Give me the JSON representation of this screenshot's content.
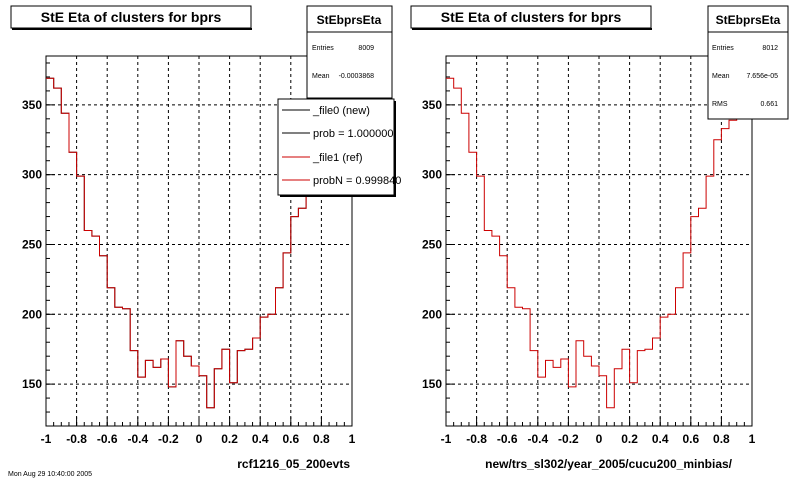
{
  "footer": "Mon Aug 29 10:40:00 2005",
  "chart_data": [
    {
      "type": "line",
      "title": "StE Eta of clusters for bprs",
      "xlabel": "rcf1216_05_200evts",
      "ylabel": "",
      "xlim": [
        -1,
        1
      ],
      "ylim": [
        120,
        385
      ],
      "x_ticks": [
        "-1",
        "-0.8",
        "-0.6",
        "-0.4",
        "-0.2",
        "0",
        "0.2",
        "0.4",
        "0.6",
        "0.8",
        "1"
      ],
      "y_ticks": [
        "150",
        "200",
        "250",
        "300",
        "350"
      ],
      "grid": true,
      "x_bin_edges": [
        -1,
        -0.95,
        -0.9,
        -0.85,
        -0.8,
        -0.75,
        -0.7,
        -0.65,
        -0.6,
        -0.55,
        -0.5,
        -0.45,
        -0.4,
        -0.35,
        -0.3,
        -0.25,
        -0.2,
        -0.15,
        -0.1,
        -0.05,
        0,
        0.05,
        0.1,
        0.15,
        0.2,
        0.25,
        0.3,
        0.35,
        0.4,
        0.45,
        0.5,
        0.55,
        0.6,
        0.65,
        0.7,
        0.75,
        0.8,
        0.85,
        0.9,
        0.95,
        1
      ],
      "series": [
        {
          "name": "_file0 (new)",
          "color": "#000000",
          "values": [
            369,
            362,
            344,
            316,
            299,
            260,
            256,
            242,
            219,
            205,
            204,
            174,
            155,
            167,
            162,
            168,
            148,
            181,
            170,
            163,
            156,
            133,
            161,
            175,
            151,
            174,
            175,
            183,
            198,
            200,
            219,
            244,
            270,
            276,
            299,
            325,
            333,
            339,
            348,
            372
          ]
        },
        {
          "name": "_file1 (ref)",
          "color": "#cc0000",
          "values": [
            369,
            362,
            344,
            316,
            299,
            260,
            256,
            242,
            219,
            205,
            204,
            174,
            155,
            167,
            162,
            168,
            148,
            181,
            170,
            163,
            156,
            133,
            161,
            175,
            151,
            174,
            175,
            183,
            198,
            200,
            219,
            244,
            270,
            276,
            299,
            325,
            333,
            339,
            348,
            372
          ]
        }
      ],
      "stats_box": {
        "name": "StEbprsEta",
        "rows": [
          {
            "label": "Entries",
            "value": "8009"
          },
          {
            "label": "Mean",
            "value": "-0.0003868"
          }
        ]
      },
      "legend": {
        "placement": "top-right",
        "entries": [
          {
            "label": "_file0 (new)",
            "color": "#000000"
          },
          {
            "label": "prob = 1.000000",
            "color": "#000000"
          },
          {
            "label": "_file1 (ref)",
            "color": "#cc0000"
          },
          {
            "label": "probN = 0.999840",
            "color": "#cc0000"
          }
        ]
      }
    },
    {
      "type": "line",
      "title": "StE Eta of clusters for bprs",
      "xlabel": "new/trs_sl302/year_2005/cucu200_minbias/",
      "ylabel": "",
      "xlim": [
        -1,
        1
      ],
      "ylim": [
        120,
        385
      ],
      "x_ticks": [
        "-1",
        "-0.8",
        "-0.6",
        "-0.4",
        "-0.2",
        "0",
        "0.2",
        "0.4",
        "0.6",
        "0.8",
        "1"
      ],
      "y_ticks": [
        "150",
        "200",
        "250",
        "300",
        "350"
      ],
      "grid": true,
      "x_bin_edges": [
        -1,
        -0.95,
        -0.9,
        -0.85,
        -0.8,
        -0.75,
        -0.7,
        -0.65,
        -0.6,
        -0.55,
        -0.5,
        -0.45,
        -0.4,
        -0.35,
        -0.3,
        -0.25,
        -0.2,
        -0.15,
        -0.1,
        -0.05,
        0,
        0.05,
        0.1,
        0.15,
        0.2,
        0.25,
        0.3,
        0.35,
        0.4,
        0.45,
        0.5,
        0.55,
        0.6,
        0.65,
        0.7,
        0.75,
        0.8,
        0.85,
        0.9,
        0.95,
        1
      ],
      "series": [
        {
          "name": "",
          "color": "#cc0000",
          "values": [
            369,
            362,
            344,
            316,
            299,
            260,
            256,
            242,
            219,
            205,
            204,
            174,
            155,
            167,
            162,
            168,
            148,
            181,
            170,
            163,
            156,
            133,
            161,
            175,
            151,
            174,
            175,
            183,
            198,
            200,
            219,
            244,
            270,
            276,
            299,
            325,
            333,
            339,
            348,
            372
          ]
        }
      ],
      "stats_box": {
        "name": "StEbprsEta",
        "rows": [
          {
            "label": "Entries",
            "value": "8012"
          },
          {
            "label": "Mean",
            "value": "7.656e-05"
          },
          {
            "label": "RMS",
            "value": "0.661"
          }
        ]
      }
    }
  ]
}
